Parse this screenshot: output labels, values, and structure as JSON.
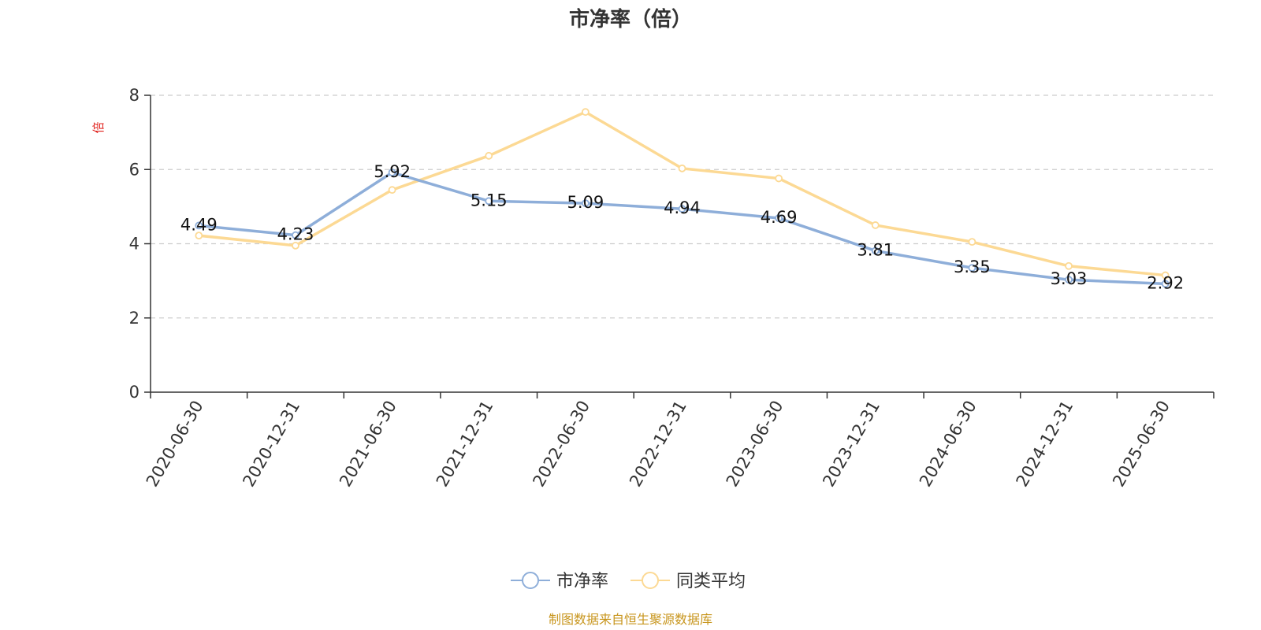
{
  "title": "市净率（倍）",
  "source_note": "制图数据来自恒生聚源数据库",
  "colors": {
    "series_main": "#8eaed9",
    "series_avg": "#fcd994",
    "unit_label": "#e0201b",
    "source_note": "#c8961e",
    "grid": "#cccccc",
    "axis": "#333333"
  },
  "chart_data": {
    "type": "line",
    "title": "市净率（倍）",
    "ylabel": "倍",
    "xlabel": "",
    "ylim": [
      0,
      8
    ],
    "yticks": [
      "0",
      "2",
      "4",
      "6",
      "8"
    ],
    "grid": true,
    "legend_position": "bottom-center",
    "categories": [
      "2020-06-30",
      "2020-12-31",
      "2021-06-30",
      "2021-12-31",
      "2022-06-30",
      "2022-12-31",
      "2023-06-30",
      "2023-12-31",
      "2024-06-30",
      "2024-12-31",
      "2025-06-30"
    ],
    "series": [
      {
        "name": "市净率",
        "color": "#8eaed9",
        "values": [
          4.49,
          4.23,
          5.92,
          5.15,
          5.09,
          4.94,
          4.69,
          3.81,
          3.35,
          3.03,
          2.92
        ],
        "labels": [
          "4.49",
          "4.23",
          "5.92",
          "5.15",
          "5.09",
          "4.94",
          "4.69",
          "3.81",
          "3.35",
          "3.03",
          "2.92"
        ]
      },
      {
        "name": "同类平均",
        "color": "#fcd994",
        "values": [
          4.22,
          3.95,
          5.45,
          6.37,
          7.55,
          6.03,
          5.76,
          4.5,
          4.05,
          3.4,
          3.15
        ]
      }
    ]
  }
}
